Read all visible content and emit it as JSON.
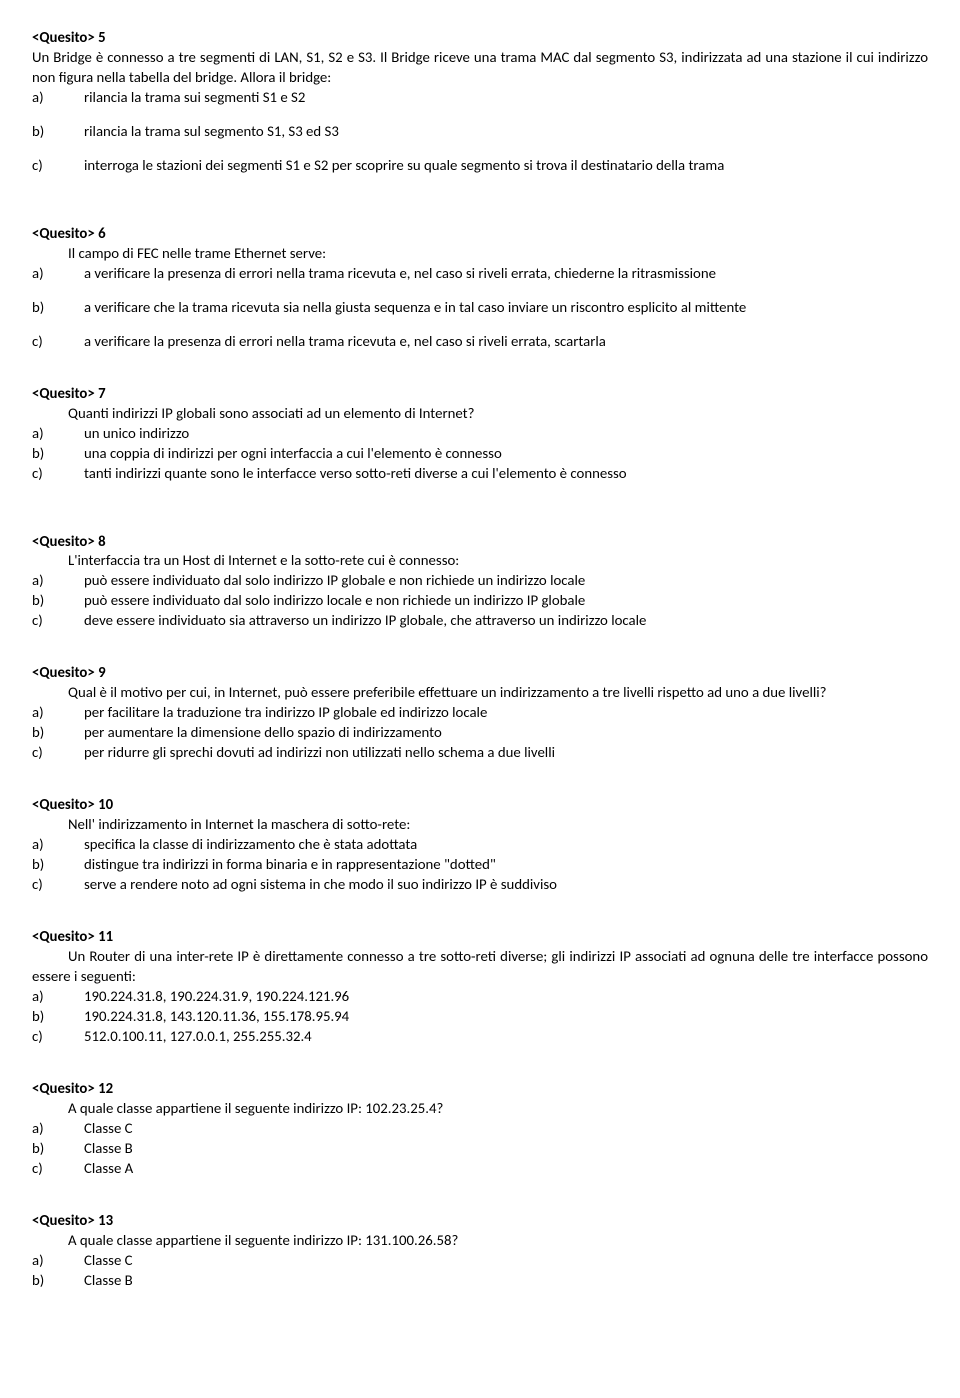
{
  "questions": [
    {
      "heading": "<Quesito> 5",
      "intro_no_indent": true,
      "intro": "Un Bridge è connesso a tre segmenti di LAN, S1, S2 e S3. Il Bridge riceve una trama MAC dal segmento S3, indirizzata ad una stazione il cui indirizzo non figura nella tabella del bridge. Allora il bridge:",
      "options": [
        {
          "l": "a)",
          "t": "rilancia la trama sui segmenti S1 e S2",
          "gap_after": true
        },
        {
          "l": "b)",
          "t": "rilancia la trama sul segmento S1, S3 ed S3",
          "gap_after": true
        },
        {
          "l": "c)",
          "t": "interroga le stazioni dei segmenti S1 e S2 per scoprire su quale segmento si trova il destinatario della trama"
        }
      ],
      "gap_after": "big"
    },
    {
      "heading": "<Quesito> 6",
      "intro": "Il campo di FEC nelle trame Ethernet serve:",
      "options": [
        {
          "l": "a)",
          "t": "a verificare la presenza di errori nella trama ricevuta e, nel caso si riveli errata, chiederne la ritrasmissione",
          "gap_after": true
        },
        {
          "l": "b)",
          "t": "a verificare che la trama ricevuta sia nella giusta sequenza e in tal caso inviare un riscontro esplicito al mittente",
          "gap_after": true
        },
        {
          "l": "c)",
          "t": "a verificare la presenza di errori nella trama ricevuta e, nel caso si riveli errata, scartarla"
        }
      ],
      "gap_after": "small"
    },
    {
      "heading": "<Quesito> 7",
      "intro": "Quanti indirizzi IP globali sono associati ad un elemento di Internet?",
      "options": [
        {
          "l": "a)",
          "t": "un unico indirizzo"
        },
        {
          "l": "b)",
          "t": "una coppia di indirizzi per ogni interfaccia a cui l'elemento è connesso"
        },
        {
          "l": "c)",
          "t": "tanti indirizzi quante sono le interfacce verso sotto-reti diverse a cui l'elemento è connesso"
        }
      ],
      "gap_after": "big"
    },
    {
      "heading": "<Quesito> 8",
      "intro": "L'interfaccia tra un Host di Internet e la sotto-rete cui è connesso:",
      "options": [
        {
          "l": "a)",
          "t": "può essere individuato dal solo indirizzo IP globale e non richiede un indirizzo locale"
        },
        {
          "l": "b)",
          "t": "può essere individuato dal solo indirizzo locale e non richiede un indirizzo IP globale"
        },
        {
          "l": "c)",
          "t": "deve essere individuato sia attraverso un indirizzo IP globale, che attraverso un indirizzo locale"
        }
      ],
      "gap_after": "small"
    },
    {
      "heading": "<Quesito> 9",
      "intro_no_indent": false,
      "intro": "Qual è il motivo per cui, in Internet, può essere preferibile effettuare un indirizzamento a tre livelli rispetto ad uno a due livelli?",
      "intro_wrap": true,
      "options": [
        {
          "l": "a)",
          "t": "per facilitare la traduzione tra indirizzo IP globale ed indirizzo locale"
        },
        {
          "l": "b)",
          "t": "per aumentare la dimensione dello spazio di indirizzamento"
        },
        {
          "l": "c)",
          "t": "per ridurre gli sprechi dovuti ad indirizzi non utilizzati nello schema a due livelli"
        }
      ],
      "gap_after": "small"
    },
    {
      "heading": "<Quesito> 10",
      "intro": "Nell' indirizzamento in Internet la maschera di sotto-rete:",
      "options": [
        {
          "l": "a)",
          "t": "specifica la classe di indirizzamento che è stata adottata"
        },
        {
          "l": "b)",
          "t": "distingue tra indirizzi in forma binaria e in rappresentazione \"dotted\""
        },
        {
          "l": "c)",
          "t": "serve a rendere noto ad ogni sistema in che modo il suo indirizzo IP è suddiviso"
        }
      ],
      "gap_after": "small"
    },
    {
      "heading": "<Quesito> 11",
      "intro_no_indent": false,
      "intro": "Un Router di una inter-rete IP è direttamente connesso a tre sotto-reti diverse; gli indirizzi IP associati ad ognuna delle tre interfacce possono essere i seguenti:",
      "intro_wrap": true,
      "options": [
        {
          "l": "a)",
          "t": "190.224.31.8, 190.224.31.9, 190.224.121.96"
        },
        {
          "l": "b)",
          "t": "190.224.31.8, 143.120.11.36, 155.178.95.94"
        },
        {
          "l": "c)",
          "t": "512.0.100.11, 127.0.0.1, 255.255.32.4"
        }
      ],
      "gap_after": "small"
    },
    {
      "heading": "<Quesito> 12",
      "intro": "A quale classe appartiene il seguente indirizzo IP: 102.23.25.4?",
      "options": [
        {
          "l": "a)",
          "t": "Classe C"
        },
        {
          "l": "b)",
          "t": "Classe B"
        },
        {
          "l": "c)",
          "t": "Classe A"
        }
      ],
      "gap_after": "small"
    },
    {
      "heading": "<Quesito> 13",
      "intro": "A quale classe appartiene il seguente indirizzo IP: 131.100.26.58?",
      "options": [
        {
          "l": "a)",
          "t": "Classe C"
        },
        {
          "l": "b)",
          "t": "Classe B"
        }
      ]
    }
  ]
}
